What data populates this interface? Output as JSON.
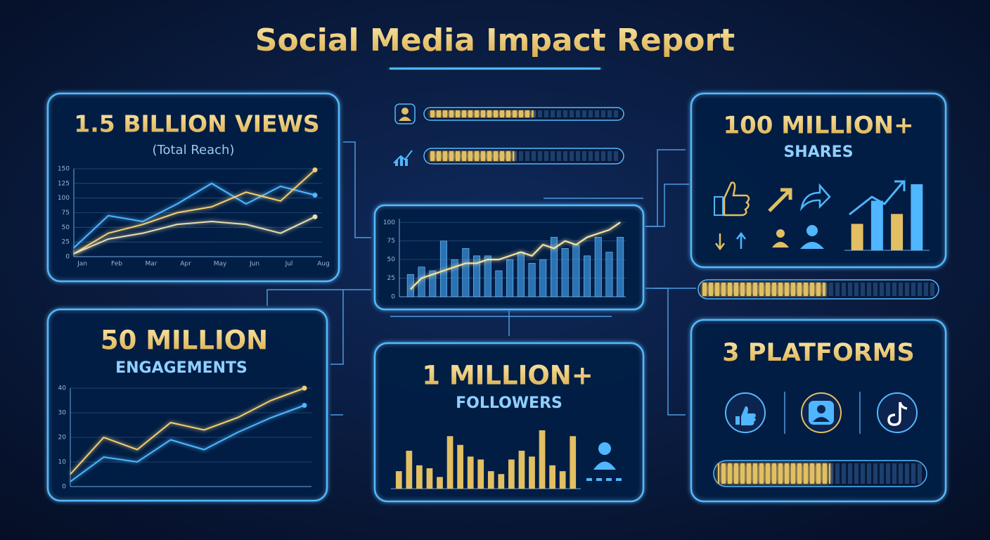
{
  "title": "Social Media Impact Report",
  "cards": {
    "views": {
      "headline": "1.5 BILLION VIEWS",
      "subtitle": "(Total Reach)"
    },
    "engagements": {
      "headline": "50 MILLION",
      "subtitle": "ENGAGEMENTS"
    },
    "followers": {
      "headline": "1 MILLION+",
      "subtitle": "FOLLOWERS"
    },
    "shares": {
      "headline": "100 MILLION+",
      "subtitle": "SHARES"
    },
    "platforms": {
      "headline": "3 PLATFORMS"
    }
  },
  "chart_data": [
    {
      "type": "line",
      "categories": [
        "Jan",
        "Feb",
        "Mar",
        "Apr",
        "May",
        "Jun",
        "Jul",
        "Aug"
      ],
      "ylim": [
        0,
        150
      ],
      "yticks": [
        0,
        25,
        50,
        75,
        100,
        125,
        150
      ],
      "grid": true,
      "series": [
        {
          "color": "#4fb6ff",
          "values": [
            15,
            70,
            60,
            90,
            125,
            90,
            120,
            105
          ]
        },
        {
          "color": "#f2cf72",
          "values": [
            5,
            40,
            55,
            75,
            85,
            110,
            95,
            148
          ]
        },
        {
          "color": "#e8ddb0",
          "values": [
            5,
            30,
            40,
            55,
            60,
            55,
            40,
            68
          ]
        }
      ]
    },
    {
      "type": "line",
      "categories": [
        null,
        null,
        null,
        null,
        null,
        null,
        null,
        null
      ],
      "ylim": [
        0,
        40
      ],
      "yticks": [
        0,
        10,
        20,
        30,
        40
      ],
      "grid": true,
      "series": [
        {
          "color": "#f2cf72",
          "values": [
            5,
            20,
            15,
            26,
            23,
            28,
            35,
            40
          ]
        },
        {
          "color": "#4fb6ff",
          "values": [
            2,
            12,
            10,
            19,
            15,
            22,
            28,
            33
          ]
        }
      ]
    },
    {
      "type": "combo",
      "ylim": [
        0,
        105
      ],
      "yticks": [
        0,
        25,
        50,
        75,
        100
      ],
      "grid": true,
      "series": [
        {
          "type": "bar",
          "color": "#3a8fd8",
          "values": [
            30,
            40,
            35,
            75,
            50,
            65,
            55,
            55,
            35,
            50,
            60,
            45,
            50,
            80,
            65,
            70,
            55,
            80,
            60,
            80
          ]
        },
        {
          "type": "line",
          "color": "#f6e3a0",
          "values": [
            10,
            25,
            30,
            35,
            40,
            45,
            45,
            50,
            50,
            55,
            60,
            55,
            70,
            65,
            75,
            70,
            80,
            85,
            90,
            100
          ]
        }
      ]
    },
    {
      "type": "bar",
      "ylim": [
        0,
        100
      ],
      "color": "#e2bf62",
      "values": [
        30,
        65,
        40,
        35,
        20,
        90,
        75,
        55,
        50,
        30,
        25,
        50,
        65,
        55,
        100,
        40,
        30,
        90
      ]
    },
    {
      "type": "bar",
      "ylim": [
        0,
        100
      ],
      "colors": [
        "#e2bf62",
        "#4fb6ff",
        "#e2bf62",
        "#4fb6ff"
      ],
      "values": [
        40,
        75,
        55,
        100
      ]
    },
    {
      "type": "progress",
      "xlim": [
        0,
        100
      ],
      "value": 55
    },
    {
      "type": "progress",
      "xlim": [
        0,
        100
      ],
      "value": 45
    },
    {
      "type": "progress",
      "xlim": [
        0,
        100
      ],
      "value": 53
    },
    {
      "type": "progress",
      "xlim": [
        0,
        100
      ],
      "value": 55
    }
  ]
}
